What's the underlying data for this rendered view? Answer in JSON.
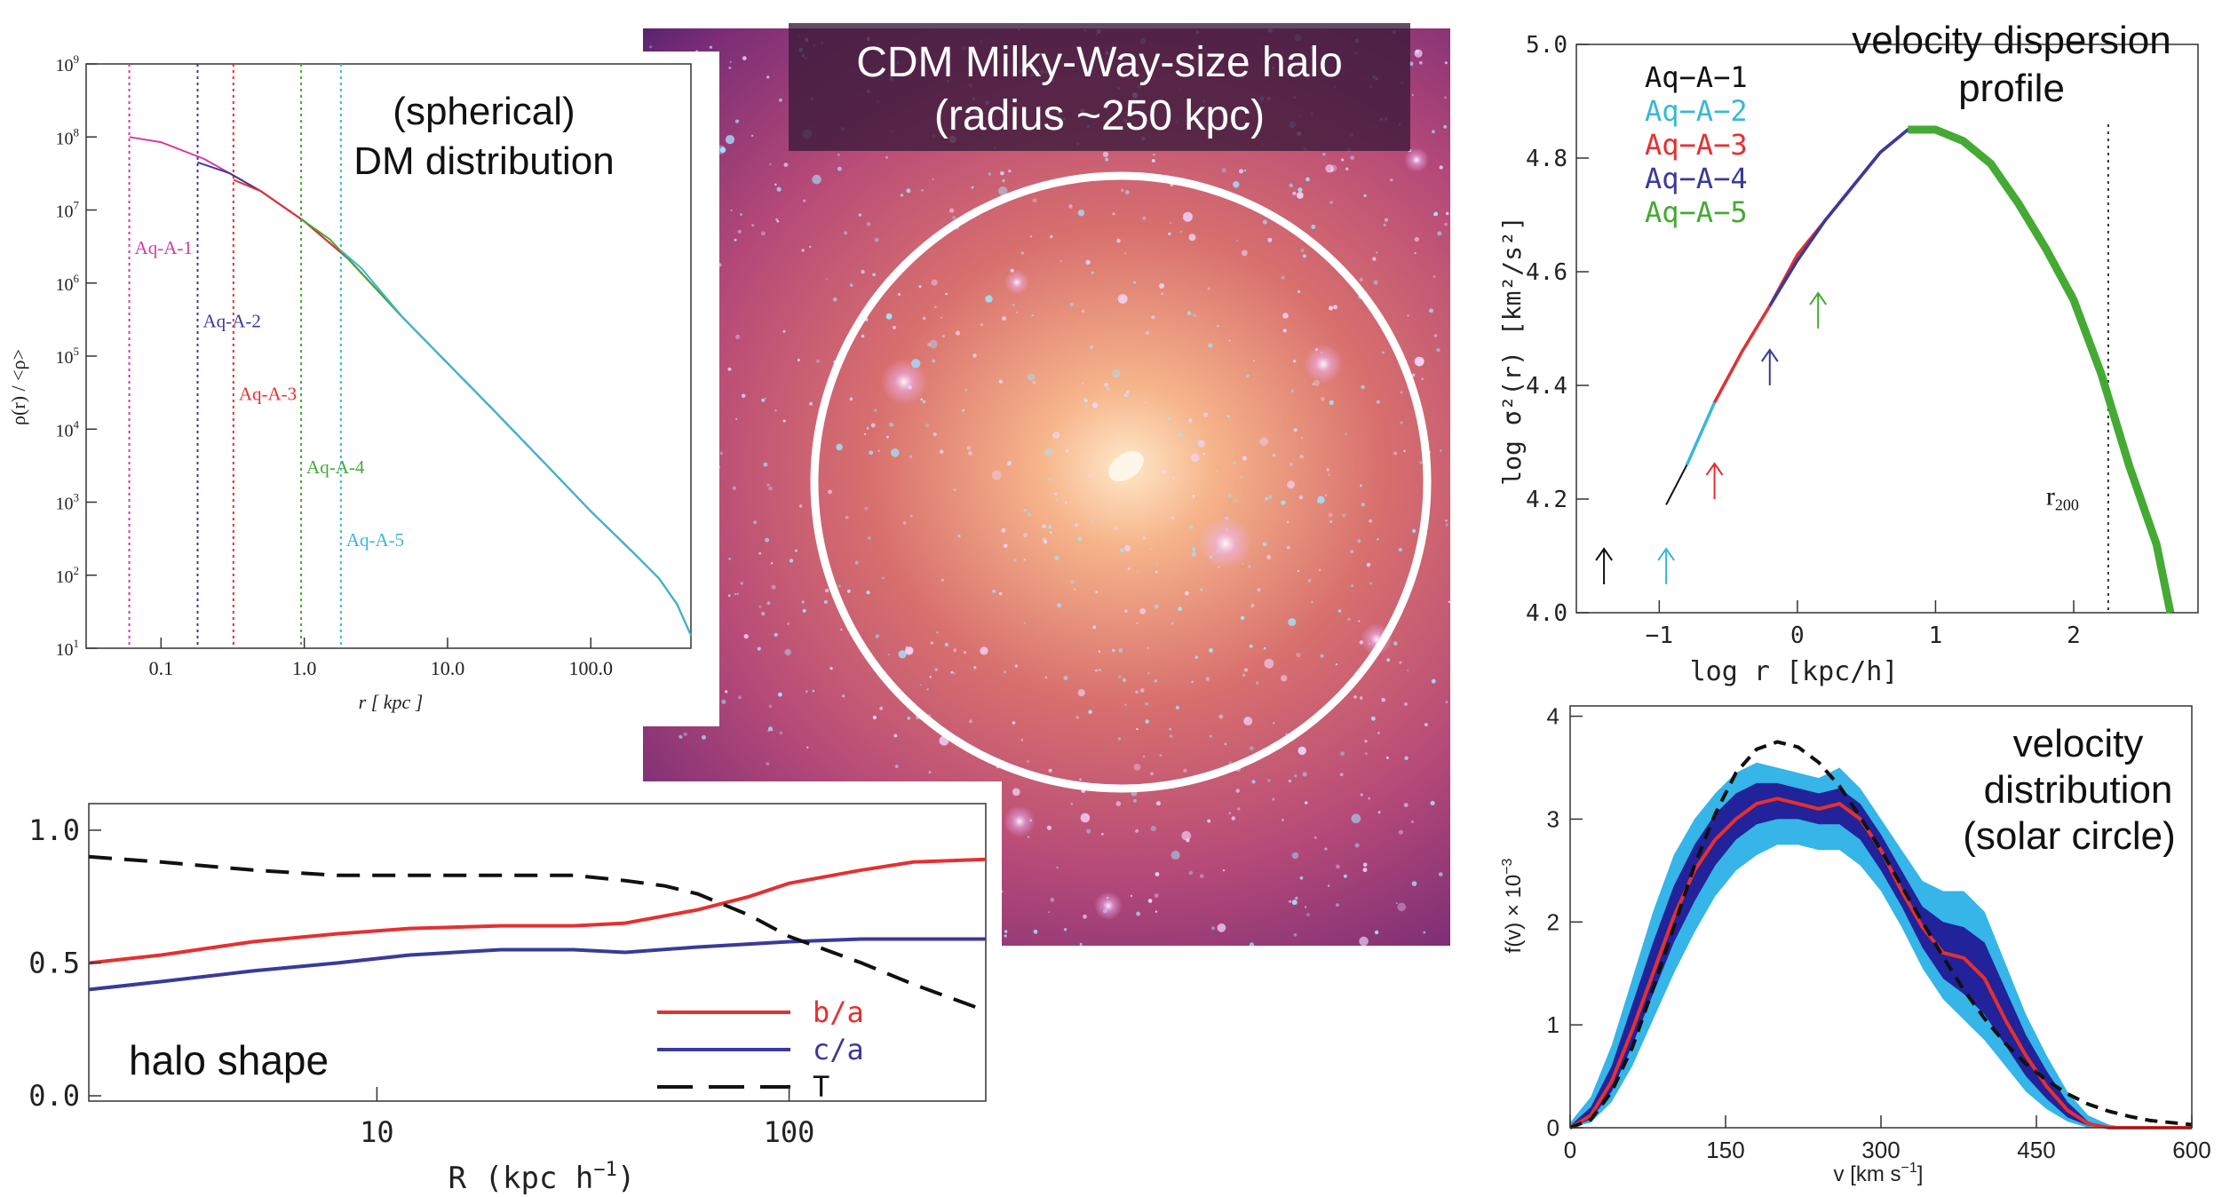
{
  "colors": {
    "red": "#e53030",
    "blue": "#3a3a9a",
    "green": "#44aa33",
    "cyan": "#38b8d8",
    "magenta": "#d63aa0",
    "lightblue": "#35b5e8",
    "navy": "#22229a",
    "black": "#111111"
  },
  "halo_image": {
    "title_line1": "CDM Milky-Way-size halo",
    "title_line2": "(radius ~250 kpc)"
  },
  "chart_data": [
    {
      "id": "density",
      "type": "line",
      "title_line1": "(spherical)",
      "title_line2": "DM distribution",
      "xlabel": "r [ kpc ]",
      "ylabel": "ρ(r) / <ρ>",
      "xscale": "log",
      "yscale": "log",
      "xlim": [
        0.03,
        500
      ],
      "ylim": [
        10,
        1000000000
      ],
      "xticks": [
        {
          "v": 0.1,
          "label": "0.1"
        },
        {
          "v": 1,
          "label": "1.0"
        },
        {
          "v": 10,
          "label": "10.0"
        },
        {
          "v": 100,
          "label": "100.0"
        }
      ],
      "yticks": [
        {
          "v": 10,
          "base": "10",
          "exp": "1"
        },
        {
          "v": 100,
          "base": "10",
          "exp": "2"
        },
        {
          "v": 1000,
          "base": "10",
          "exp": "3"
        },
        {
          "v": 10000,
          "base": "10",
          "exp": "4"
        },
        {
          "v": 100000,
          "base": "10",
          "exp": "5"
        },
        {
          "v": 1000000,
          "base": "10",
          "exp": "6"
        },
        {
          "v": 10000000,
          "base": "10",
          "exp": "7"
        },
        {
          "v": 100000000,
          "base": "10",
          "exp": "8"
        },
        {
          "v": 1000000000,
          "base": "10",
          "exp": "9"
        }
      ],
      "series": [
        {
          "name": "Aq-A-1",
          "color": "#d63aa0",
          "x": [
            0.06,
            0.1,
            0.2,
            0.3,
            0.5,
            1,
            2,
            5,
            10,
            20,
            50,
            100,
            200,
            300,
            400,
            500
          ],
          "y": [
            100000000,
            85000000,
            50000000,
            32000000,
            18000000,
            7000000,
            2200000,
            320000,
            80000,
            20000,
            3100,
            750,
            200,
            90,
            40,
            15
          ]
        },
        {
          "name": "Aq-A-2",
          "color": "#3a3a9a",
          "x": [
            0.18,
            0.3,
            0.5,
            1,
            2,
            5,
            10,
            20,
            50,
            100,
            200,
            300,
            400,
            500
          ],
          "y": [
            45000000,
            32000000,
            18000000,
            7000000,
            2200000,
            320000,
            80000,
            20000,
            3100,
            750,
            200,
            90,
            40,
            15
          ]
        },
        {
          "name": "Aq-A-3",
          "color": "#e53030",
          "x": [
            0.32,
            0.5,
            1,
            2,
            5,
            10,
            20,
            50,
            100,
            200,
            300,
            400,
            500
          ],
          "y": [
            26000000,
            18000000,
            7000000,
            2200000,
            320000,
            80000,
            20000,
            3100,
            750,
            200,
            90,
            40,
            15
          ]
        },
        {
          "name": "Aq-A-4",
          "color": "#44aa33",
          "x": [
            0.95,
            1.5,
            2,
            5,
            10,
            20,
            50,
            100,
            200,
            300,
            400,
            500
          ],
          "y": [
            7500000,
            4000000,
            2200000,
            320000,
            80000,
            20000,
            3100,
            750,
            200,
            90,
            40,
            15
          ]
        },
        {
          "name": "Aq-A-5",
          "color": "#38b8d8",
          "x": [
            1.8,
            2.5,
            5,
            10,
            20,
            50,
            100,
            200,
            300,
            400,
            500
          ],
          "y": [
            2800000,
            1600000,
            320000,
            80000,
            20000,
            3100,
            750,
            200,
            90,
            40,
            15
          ]
        }
      ],
      "vlines": [
        {
          "x": 0.06,
          "color": "#d63aa0",
          "label": "Aq-A-1",
          "label_y": 2500000
        },
        {
          "x": 0.18,
          "color": "#3a3a9a",
          "label": "Aq-A-2",
          "label_y": 250000
        },
        {
          "x": 0.32,
          "color": "#e53030",
          "label": "Aq-A-3",
          "label_y": 25000
        },
        {
          "x": 0.95,
          "color": "#44aa33",
          "label": "Aq-A-4",
          "label_y": 2500
        },
        {
          "x": 1.8,
          "color": "#38b8d8",
          "label": "Aq-A-5",
          "label_y": 250
        }
      ]
    },
    {
      "id": "dispersion",
      "type": "line",
      "title_line1": "velocity dispersion",
      "title_line2": "profile",
      "xlabel": "log r [kpc/h]",
      "ylabel": "log σ²(r) [km²/s²]",
      "xlim": [
        -1.6,
        2.9
      ],
      "ylim": [
        4.0,
        5.0
      ],
      "xticks": [
        {
          "v": -1,
          "label": "−1"
        },
        {
          "v": 0,
          "label": "0"
        },
        {
          "v": 1,
          "label": "1"
        },
        {
          "v": 2,
          "label": "2"
        }
      ],
      "yticks": [
        {
          "v": 4.0,
          "label": "4.0"
        },
        {
          "v": 4.2,
          "label": "4.2"
        },
        {
          "v": 4.4,
          "label": "4.4"
        },
        {
          "v": 4.6,
          "label": "4.6"
        },
        {
          "v": 4.8,
          "label": "4.8"
        },
        {
          "v": 5.0,
          "label": "5.0"
        }
      ],
      "r200": 2.25,
      "r200_label": "r",
      "r200_sub": "200",
      "legend": [
        "Aq−A−1",
        "Aq−A−2",
        "Aq−A−3",
        "Aq−A−4",
        "Aq−A−5"
      ],
      "series": [
        {
          "name": "Aq-A-1",
          "color": "#111111",
          "x": [
            -0.95,
            -0.8,
            -0.6,
            -0.4,
            -0.2,
            0,
            0.2,
            0.4,
            0.6,
            0.8,
            1.0,
            1.2,
            1.4,
            1.6,
            1.8,
            2.0,
            2.2,
            2.4,
            2.6,
            2.7
          ],
          "y": [
            4.19,
            4.26,
            4.37,
            4.46,
            4.54,
            4.62,
            4.69,
            4.75,
            4.81,
            4.85,
            4.85,
            4.83,
            4.79,
            4.72,
            4.64,
            4.55,
            4.42,
            4.26,
            4.12,
            4.0
          ]
        },
        {
          "name": "Aq-A-2",
          "color": "#38b8d8",
          "x": [
            -0.8,
            -0.6,
            -0.4,
            -0.2,
            0,
            0.2,
            0.4,
            0.6,
            0.8,
            1.0,
            1.2,
            1.4,
            1.6,
            1.8,
            2.0,
            2.2,
            2.4,
            2.6,
            2.7
          ],
          "y": [
            4.26,
            4.37,
            4.46,
            4.54,
            4.62,
            4.69,
            4.75,
            4.81,
            4.85,
            4.85,
            4.83,
            4.79,
            4.72,
            4.64,
            4.55,
            4.42,
            4.26,
            4.12,
            4.0
          ]
        },
        {
          "name": "Aq-A-3",
          "color": "#e53030",
          "x": [
            -0.6,
            -0.4,
            -0.2,
            0,
            0.2,
            0.4,
            0.6,
            0.8,
            1.0,
            1.2,
            1.4,
            1.6,
            1.8,
            2.0,
            2.2,
            2.4,
            2.6,
            2.7
          ],
          "y": [
            4.37,
            4.46,
            4.54,
            4.63,
            4.69,
            4.75,
            4.81,
            4.85,
            4.85,
            4.83,
            4.79,
            4.72,
            4.64,
            4.56,
            4.42,
            4.26,
            4.12,
            4.0
          ]
        },
        {
          "name": "Aq-A-4",
          "color": "#3a3a9a",
          "x": [
            -0.2,
            0,
            0.2,
            0.4,
            0.6,
            0.8,
            1.0,
            1.2,
            1.4,
            1.6,
            1.8,
            2.0,
            2.2,
            2.4,
            2.6,
            2.7
          ],
          "y": [
            4.54,
            4.62,
            4.69,
            4.75,
            4.81,
            4.85,
            4.85,
            4.83,
            4.79,
            4.72,
            4.64,
            4.55,
            4.42,
            4.26,
            4.12,
            4.0
          ]
        },
        {
          "name": "Aq-A-5",
          "color": "#44aa33",
          "x": [
            0.8,
            1.0,
            1.2,
            1.4,
            1.6,
            1.8,
            2.0,
            2.2,
            2.4,
            2.6,
            2.7
          ],
          "y": [
            4.85,
            4.85,
            4.83,
            4.79,
            4.72,
            4.64,
            4.55,
            4.42,
            4.26,
            4.12,
            4.0
          ]
        }
      ],
      "arrows": [
        {
          "x": -1.4,
          "color": "#111111"
        },
        {
          "x": -0.95,
          "color": "#38b8d8"
        },
        {
          "x": -0.6,
          "color": "#e53030"
        },
        {
          "x": -0.2,
          "color": "#3a3a9a"
        },
        {
          "x": 0.15,
          "color": "#44aa33"
        }
      ]
    },
    {
      "id": "shape",
      "type": "line",
      "title": "halo shape",
      "xlabel": "R (kpc h",
      "xlabel_sup": "−1",
      "xlabel_end": ")",
      "xscale": "log",
      "xlim": [
        2,
        300
      ],
      "ylim": [
        -0.02,
        1.1
      ],
      "xticks": [
        {
          "v": 10,
          "label": "10"
        },
        {
          "v": 100,
          "label": "100"
        }
      ],
      "yticks": [
        {
          "v": 0.0,
          "label": "0.0"
        },
        {
          "v": 0.5,
          "label": "0.5"
        },
        {
          "v": 1.0,
          "label": "1.0"
        }
      ],
      "series": [
        {
          "name": "b/a",
          "color": "#e53030",
          "dash": false,
          "x": [
            2,
            3,
            5,
            8,
            12,
            20,
            30,
            40,
            60,
            80,
            100,
            150,
            200,
            300
          ],
          "y": [
            0.5,
            0.53,
            0.58,
            0.61,
            0.63,
            0.64,
            0.64,
            0.65,
            0.7,
            0.75,
            0.8,
            0.85,
            0.88,
            0.89
          ]
        },
        {
          "name": "c/a",
          "color": "#3a3a9a",
          "dash": false,
          "x": [
            2,
            3,
            5,
            8,
            12,
            20,
            30,
            40,
            60,
            100,
            150,
            200,
            300
          ],
          "y": [
            0.4,
            0.43,
            0.47,
            0.5,
            0.53,
            0.55,
            0.55,
            0.54,
            0.56,
            0.58,
            0.59,
            0.59,
            0.59
          ]
        },
        {
          "name": "T",
          "color": "#111111",
          "dash": true,
          "x": [
            2,
            3,
            5,
            8,
            12,
            20,
            30,
            40,
            50,
            60,
            80,
            100,
            150,
            200,
            300
          ],
          "y": [
            0.9,
            0.88,
            0.85,
            0.83,
            0.83,
            0.83,
            0.83,
            0.81,
            0.79,
            0.76,
            0.68,
            0.6,
            0.5,
            0.42,
            0.32
          ]
        }
      ],
      "legend": [
        "b/a",
        "c/a",
        "T"
      ]
    },
    {
      "id": "veldist",
      "type": "area",
      "title_line1": "velocity",
      "title_line2": "distribution",
      "title_line3": "(solar circle)",
      "xlabel": "v [km s",
      "xlabel_sup": "−1",
      "xlabel_end": "]",
      "ylabel": "f(v) × 10",
      "ylabel_sup": "−3",
      "xlim": [
        0,
        600
      ],
      "ylim": [
        0,
        4.1
      ],
      "xticks": [
        {
          "v": 0,
          "label": "0"
        },
        {
          "v": 150,
          "label": "150"
        },
        {
          "v": 300,
          "label": "300"
        },
        {
          "v": 450,
          "label": "450"
        },
        {
          "v": 600,
          "label": "600"
        }
      ],
      "yticks": [
        {
          "v": 0,
          "label": "0"
        },
        {
          "v": 1,
          "label": "1"
        },
        {
          "v": 2,
          "label": "2"
        },
        {
          "v": 3,
          "label": "3"
        },
        {
          "v": 4,
          "label": "4"
        }
      ],
      "x": [
        0,
        20,
        40,
        60,
        80,
        100,
        120,
        140,
        160,
        180,
        200,
        220,
        240,
        260,
        280,
        300,
        320,
        340,
        360,
        380,
        400,
        420,
        440,
        460,
        480,
        500,
        520,
        540,
        560,
        600
      ],
      "outer_hi": [
        0.05,
        0.3,
        0.8,
        1.45,
        2.1,
        2.65,
        3.0,
        3.25,
        3.45,
        3.55,
        3.5,
        3.45,
        3.4,
        3.5,
        3.3,
        3.0,
        2.7,
        2.4,
        2.3,
        2.3,
        2.1,
        1.6,
        1.1,
        0.7,
        0.35,
        0.12,
        0.03,
        0.0,
        0.0,
        0.0
      ],
      "outer_lo": [
        0.0,
        0.05,
        0.25,
        0.6,
        1.05,
        1.5,
        1.9,
        2.25,
        2.5,
        2.65,
        2.75,
        2.75,
        2.7,
        2.7,
        2.55,
        2.3,
        1.95,
        1.55,
        1.25,
        1.05,
        0.85,
        0.6,
        0.35,
        0.18,
        0.06,
        0.0,
        0.0,
        0.0,
        0.0,
        0.0
      ],
      "inner_hi": [
        0.02,
        0.2,
        0.6,
        1.2,
        1.8,
        2.35,
        2.75,
        3.05,
        3.25,
        3.35,
        3.35,
        3.3,
        3.25,
        3.3,
        3.15,
        2.85,
        2.5,
        2.15,
        2.0,
        1.95,
        1.8,
        1.35,
        0.9,
        0.55,
        0.25,
        0.06,
        0.0,
        0.0,
        0.0,
        0.0
      ],
      "inner_lo": [
        0.0,
        0.08,
        0.35,
        0.8,
        1.3,
        1.8,
        2.2,
        2.55,
        2.8,
        2.95,
        3.0,
        3.0,
        2.95,
        2.95,
        2.8,
        2.5,
        2.15,
        1.75,
        1.45,
        1.3,
        1.1,
        0.8,
        0.5,
        0.28,
        0.1,
        0.02,
        0.0,
        0.0,
        0.0,
        0.0
      ],
      "median": [
        0.0,
        0.12,
        0.45,
        0.95,
        1.5,
        2.05,
        2.5,
        2.8,
        3.0,
        3.15,
        3.2,
        3.15,
        3.1,
        3.15,
        3.0,
        2.7,
        2.3,
        1.95,
        1.7,
        1.65,
        1.45,
        1.05,
        0.7,
        0.4,
        0.17,
        0.04,
        0.0,
        0.0,
        0.0,
        0.0
      ],
      "maxwell": [
        0.0,
        0.08,
        0.35,
        0.78,
        1.35,
        1.95,
        2.55,
        3.05,
        3.45,
        3.68,
        3.75,
        3.7,
        3.55,
        3.32,
        3.02,
        2.7,
        2.35,
        2.0,
        1.66,
        1.34,
        1.06,
        0.82,
        0.62,
        0.46,
        0.33,
        0.23,
        0.16,
        0.11,
        0.07,
        0.03
      ]
    }
  ]
}
